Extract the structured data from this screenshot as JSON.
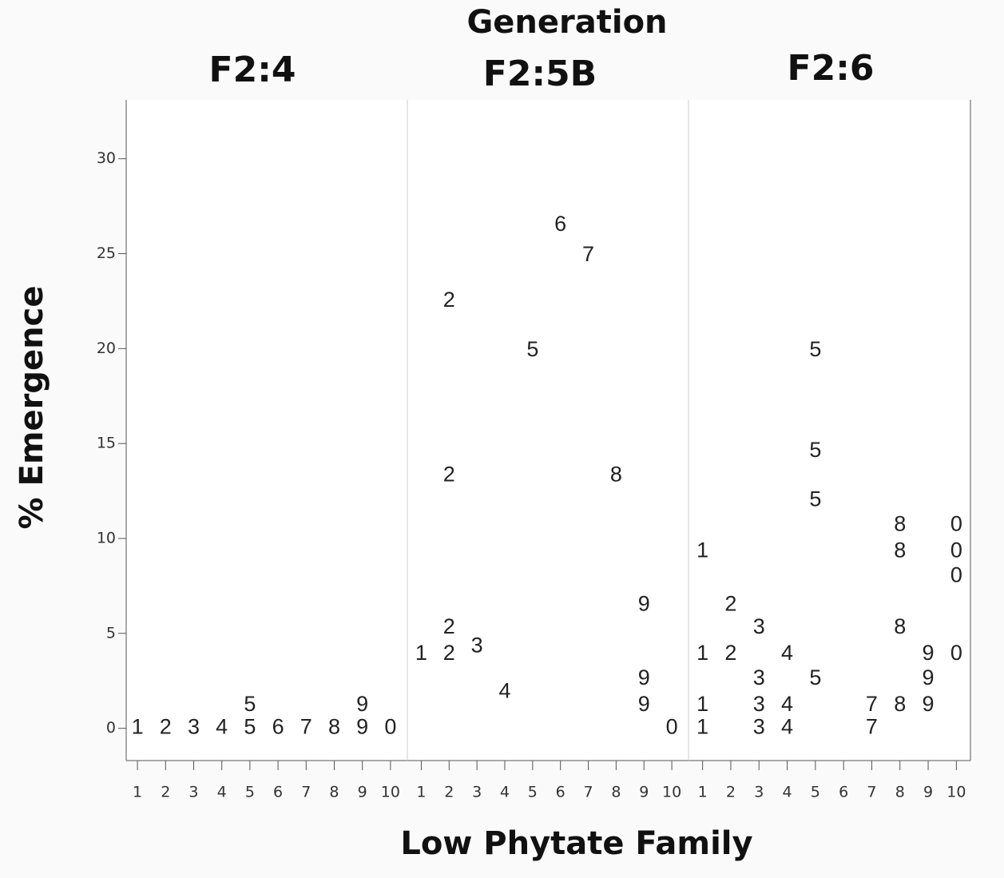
{
  "figure": {
    "title": "Generation",
    "x_label": "Low Phytate Family",
    "y_label": "% Emergence",
    "ylim": [
      -1.7,
      33.1
    ],
    "yticks": [
      0,
      5,
      10,
      15,
      20,
      25,
      30
    ]
  },
  "chart_data": [
    {
      "type": "scatter",
      "title": "F2:4",
      "xlim": [
        0.6,
        10.6
      ],
      "xticks": [
        1,
        2,
        3,
        4,
        5,
        6,
        7,
        8,
        9,
        10
      ],
      "x": [
        1,
        2,
        3,
        4,
        5,
        5,
        6,
        7,
        8,
        9,
        9,
        10
      ],
      "values": [
        0,
        0,
        0,
        0,
        0,
        1.2,
        0,
        0,
        0,
        0,
        1.2,
        0
      ],
      "point_labels": [
        "1",
        "2",
        "3",
        "4",
        "5",
        "5",
        "6",
        "7",
        "8",
        "9",
        "9",
        "0"
      ]
    },
    {
      "type": "scatter",
      "title": "F2:5B",
      "xlim": [
        0.5,
        10.6
      ],
      "xticks": [
        1,
        2,
        3,
        4,
        5,
        6,
        7,
        8,
        9,
        10
      ],
      "x": [
        1,
        2,
        2,
        2,
        2,
        3,
        4,
        5,
        6,
        7,
        8,
        9,
        9,
        9,
        10
      ],
      "values": [
        3.9,
        3.9,
        5.3,
        13.3,
        22.5,
        4.3,
        1.9,
        19.9,
        26.5,
        24.9,
        13.3,
        6.5,
        2.6,
        1.2,
        0
      ],
      "point_labels": [
        "1",
        "2",
        "2",
        "2",
        "2",
        "3",
        "4",
        "5",
        "6",
        "7",
        "8",
        "9",
        "9",
        "9",
        "0"
      ]
    },
    {
      "type": "scatter",
      "title": "F2:6",
      "xlim": [
        0.5,
        10.5
      ],
      "xticks": [
        1,
        2,
        3,
        4,
        5,
        6,
        7,
        8,
        9,
        10
      ],
      "x": [
        1,
        1,
        1,
        1,
        2,
        2,
        3,
        3,
        3,
        3,
        4,
        4,
        4,
        5,
        5,
        5,
        5,
        7,
        7,
        8,
        8,
        8,
        8,
        9,
        9,
        9,
        10,
        10,
        10,
        10
      ],
      "values": [
        9.3,
        3.9,
        1.2,
        0,
        6.5,
        3.9,
        5.3,
        2.6,
        1.2,
        0,
        3.9,
        1.2,
        0,
        19.9,
        14.6,
        12.0,
        2.6,
        1.2,
        0,
        10.7,
        9.3,
        5.3,
        1.2,
        3.9,
        2.6,
        1.2,
        10.7,
        9.3,
        8.0,
        3.9
      ],
      "point_labels": [
        "1",
        "1",
        "1",
        "1",
        "2",
        "2",
        "3",
        "3",
        "3",
        "3",
        "4",
        "4",
        "4",
        "5",
        "5",
        "5",
        "5",
        "7",
        "7",
        "8",
        "8",
        "8",
        "8",
        "9",
        "9",
        "9",
        "0",
        "0",
        "0",
        "0"
      ]
    }
  ]
}
